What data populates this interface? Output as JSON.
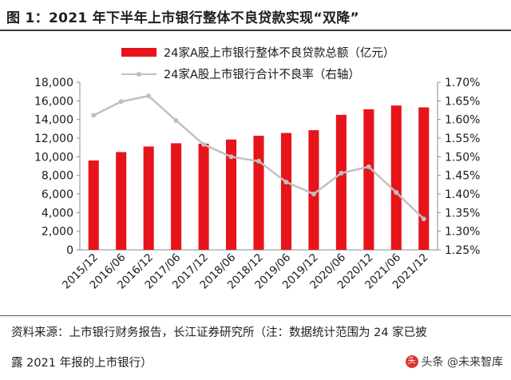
{
  "figure": {
    "title": "图 1：2021 年下半年上市银行整体不良贷款实现“双降”"
  },
  "source": {
    "line1": "资料来源：上市银行财务报告，长江证券研究所（注：数据统计范围为 24 家已披",
    "line2": "露 2021 年报的上市银行）"
  },
  "watermark": {
    "text": "头条 @未来智库",
    "icon": "toutiao-logo-icon"
  },
  "chart_data": {
    "type": "bar",
    "categories": [
      "2015/12",
      "2016/06",
      "2016/12",
      "2017/06",
      "2017/12",
      "2018/06",
      "2018/12",
      "2019/06",
      "2019/12",
      "2020/06",
      "2020/12",
      "2021/06",
      "2021/12"
    ],
    "series": [
      {
        "name": "24家A股上市银行整体不良贷款总额（亿元）",
        "type": "bar",
        "axis": "left",
        "color": "#e8141b",
        "values": [
          9600,
          10500,
          11100,
          11450,
          11400,
          11850,
          12250,
          12550,
          12850,
          14500,
          15100,
          15500,
          15300
        ]
      },
      {
        "name": "24家A股上市银行合计不良率（右轴）",
        "type": "line",
        "axis": "right",
        "color": "#c0c0c0",
        "values": [
          1.611,
          1.648,
          1.663,
          1.597,
          1.533,
          1.5,
          1.488,
          1.432,
          1.4,
          1.456,
          1.473,
          1.404,
          1.333
        ]
      }
    ],
    "y_left": {
      "ylim": [
        0,
        18000
      ],
      "ticks": [
        "0",
        "2,000",
        "4,000",
        "6,000",
        "8,000",
        "10,000",
        "12,000",
        "14,000",
        "16,000",
        "18,000"
      ]
    },
    "y_right": {
      "ylim": [
        1.25,
        1.7
      ],
      "ticks": [
        "1.25%",
        "1.30%",
        "1.35%",
        "1.40%",
        "1.45%",
        "1.50%",
        "1.55%",
        "1.60%",
        "1.65%",
        "1.70%"
      ]
    },
    "grid": false,
    "legend_position": "top"
  }
}
